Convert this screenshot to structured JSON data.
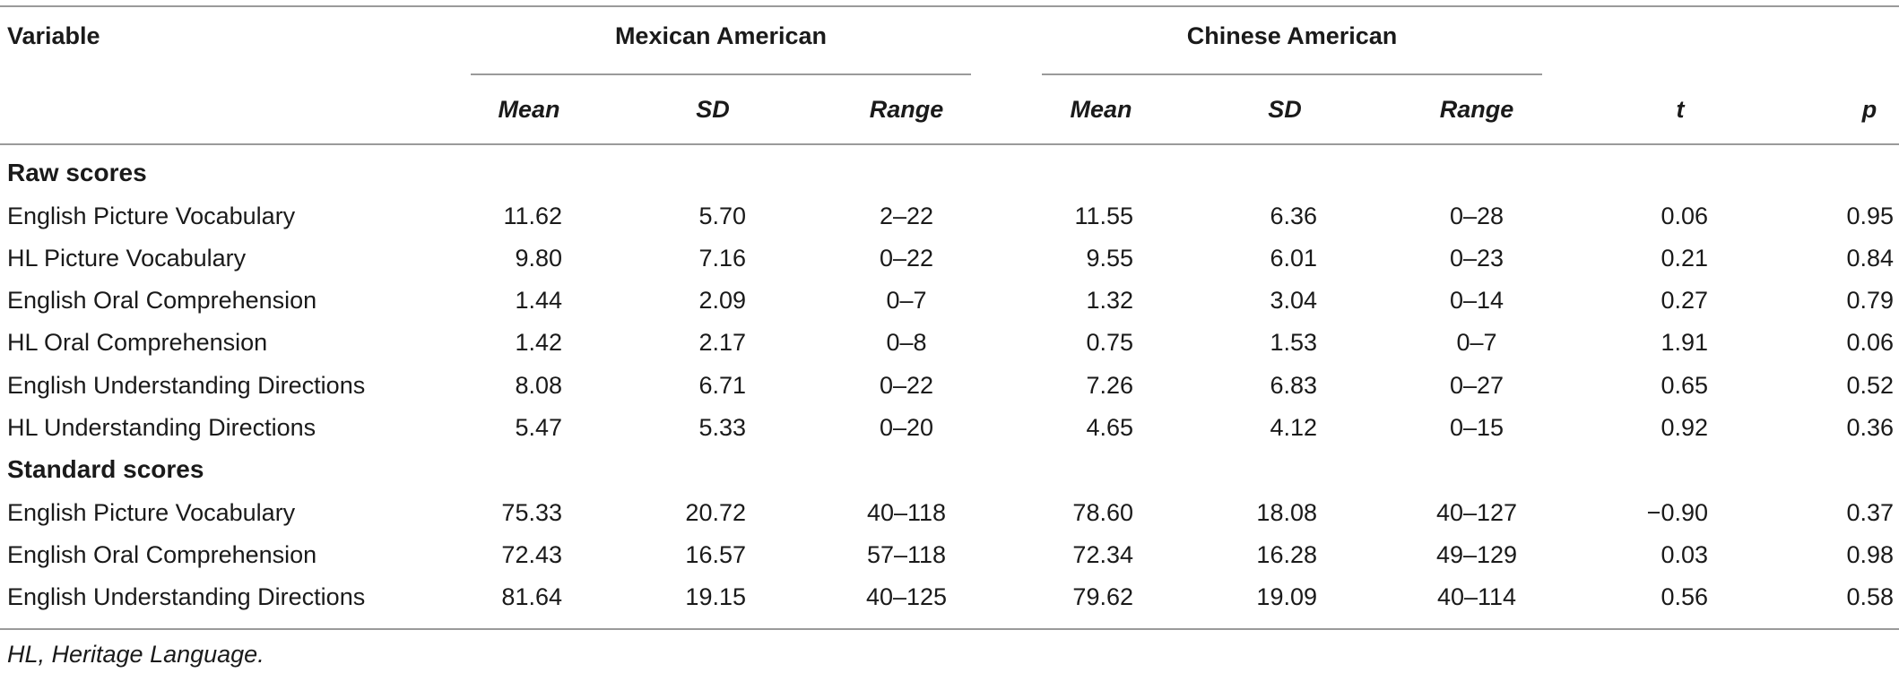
{
  "table": {
    "header": {
      "variable": "Variable",
      "group1": "Mexican American",
      "group2": "Chinese American",
      "mean": "Mean",
      "sd": "SD",
      "range": "Range",
      "t": "t",
      "p": "p"
    },
    "sections": [
      {
        "title": "Raw scores",
        "rows": [
          {
            "variable": "English Picture Vocabulary",
            "ma_mean": "11.62",
            "ma_sd": "5.70",
            "ma_range": "2–22",
            "ca_mean": "11.55",
            "ca_sd": "6.36",
            "ca_range": "0–28",
            "t": "0.06",
            "p": "0.95"
          },
          {
            "variable": "HL Picture Vocabulary",
            "ma_mean": "9.80",
            "ma_sd": "7.16",
            "ma_range": "0–22",
            "ca_mean": "9.55",
            "ca_sd": "6.01",
            "ca_range": "0–23",
            "t": "0.21",
            "p": "0.84"
          },
          {
            "variable": "English Oral Comprehension",
            "ma_mean": "1.44",
            "ma_sd": "2.09",
            "ma_range": "0–7",
            "ca_mean": "1.32",
            "ca_sd": "3.04",
            "ca_range": "0–14",
            "t": "0.27",
            "p": "0.79"
          },
          {
            "variable": "HL Oral Comprehension",
            "ma_mean": "1.42",
            "ma_sd": "2.17",
            "ma_range": "0–8",
            "ca_mean": "0.75",
            "ca_sd": "1.53",
            "ca_range": "0–7",
            "t": "1.91",
            "p": "0.06"
          },
          {
            "variable": "English Understanding Directions",
            "ma_mean": "8.08",
            "ma_sd": "6.71",
            "ma_range": "0–22",
            "ca_mean": "7.26",
            "ca_sd": "6.83",
            "ca_range": "0–27",
            "t": "0.65",
            "p": "0.52"
          },
          {
            "variable": "HL Understanding Directions",
            "ma_mean": "5.47",
            "ma_sd": "5.33",
            "ma_range": "0–20",
            "ca_mean": "4.65",
            "ca_sd": "4.12",
            "ca_range": "0–15",
            "t": "0.92",
            "p": "0.36"
          }
        ]
      },
      {
        "title": "Standard scores",
        "rows": [
          {
            "variable": "English Picture Vocabulary",
            "ma_mean": "75.33",
            "ma_sd": "20.72",
            "ma_range": "40–118",
            "ca_mean": "78.60",
            "ca_sd": "18.08",
            "ca_range": "40–127",
            "t": "−0.90",
            "p": "0.37"
          },
          {
            "variable": "English Oral Comprehension",
            "ma_mean": "72.43",
            "ma_sd": "16.57",
            "ma_range": "57–118",
            "ca_mean": "72.34",
            "ca_sd": "16.28",
            "ca_range": "49–129",
            "t": "0.03",
            "p": "0.98"
          },
          {
            "variable": "English Understanding Directions",
            "ma_mean": "81.64",
            "ma_sd": "19.15",
            "ma_range": "40–125",
            "ca_mean": "79.62",
            "ca_sd": "19.09",
            "ca_range": "40–114",
            "t": "0.56",
            "p": "0.58"
          }
        ]
      }
    ],
    "footnote": "HL, Heritage Language."
  }
}
